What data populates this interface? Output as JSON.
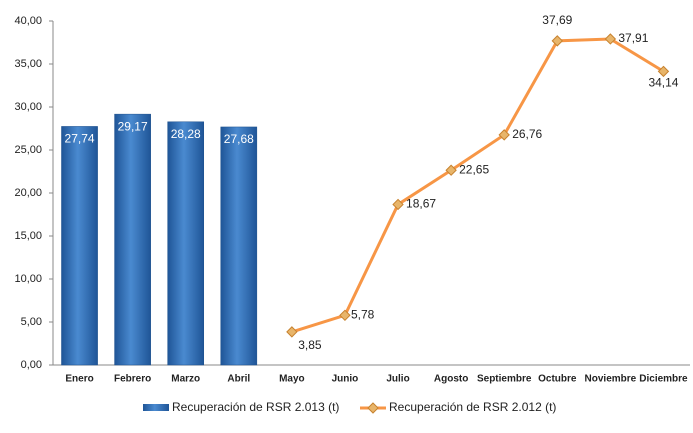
{
  "chart_data": {
    "type": "combo",
    "categories": [
      "Enero",
      "Febrero",
      "Marzo",
      "Abril",
      "Mayo",
      "Junio",
      "Julio",
      "Agosto",
      "Septiembre",
      "Octubre",
      "Noviembre",
      "Diciembre"
    ],
    "series": [
      {
        "name": "Recuperación de RSR 2.013 (t)",
        "type": "bar",
        "color": "#2f6db3",
        "values": [
          27.74,
          29.17,
          28.28,
          27.68,
          null,
          null,
          null,
          null,
          null,
          null,
          null,
          null
        ],
        "value_labels": [
          "27,74",
          "29,17",
          "28,28",
          "27,68",
          null,
          null,
          null,
          null,
          null,
          null,
          null,
          null
        ]
      },
      {
        "name": "Recuperación de RSR 2.012 (t)",
        "type": "line",
        "color": "#f79646",
        "values": [
          null,
          null,
          null,
          null,
          3.85,
          5.78,
          18.67,
          22.65,
          26.76,
          37.69,
          37.91,
          34.14
        ],
        "value_labels": [
          null,
          null,
          null,
          null,
          "3,85",
          "5,78",
          "18,67",
          "22,65",
          "26,76",
          "37,69",
          "37,91",
          "34,14"
        ]
      }
    ],
    "ylim": [
      0,
      40
    ],
    "yticks": [
      {
        "value": 0,
        "label": "0,00"
      },
      {
        "value": 5,
        "label": "5,00"
      },
      {
        "value": 10,
        "label": "10,00"
      },
      {
        "value": 15,
        "label": "15,00"
      },
      {
        "value": 20,
        "label": "20,00"
      },
      {
        "value": 25,
        "label": "25,00"
      },
      {
        "value": 30,
        "label": "30,00"
      },
      {
        "value": 35,
        "label": "35,00"
      },
      {
        "value": 40,
        "label": "40,00"
      }
    ],
    "legend": "bottom"
  }
}
